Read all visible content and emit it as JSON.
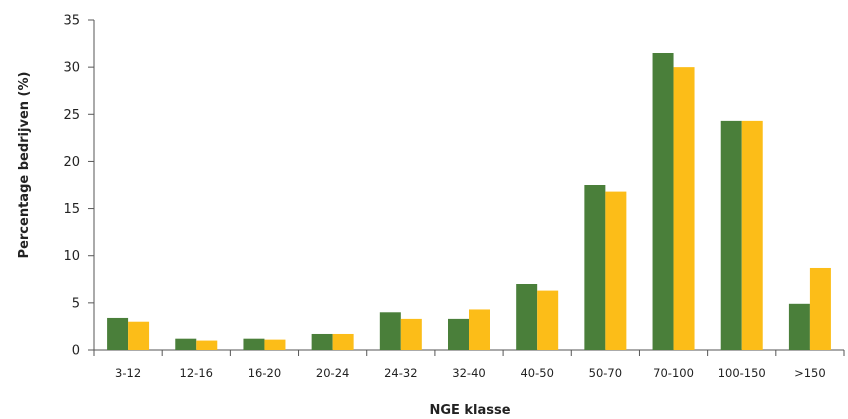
{
  "chart_data": {
    "type": "bar",
    "title": "",
    "xlabel": "NGE klasse",
    "ylabel": "Percentage bedrijven (%)",
    "ylim": [
      0,
      35
    ],
    "yticks": [
      0,
      5,
      10,
      15,
      20,
      25,
      30,
      35
    ],
    "grid": false,
    "legend": "none",
    "categories": [
      "3-12",
      "12-16",
      "16-20",
      "20-24",
      "24-32",
      "32-40",
      "40-50",
      "50-70",
      "70-100",
      "100-150",
      ">150"
    ],
    "series": [
      {
        "color": "#4a7f3a",
        "values": [
          3.4,
          1.2,
          1.2,
          1.7,
          4.0,
          3.3,
          7.0,
          17.5,
          31.5,
          24.3,
          4.9
        ]
      },
      {
        "color": "#fcbd18",
        "values": [
          3.0,
          1.0,
          1.1,
          1.7,
          3.3,
          4.3,
          6.3,
          16.8,
          30.0,
          24.3,
          8.7
        ]
      }
    ]
  }
}
